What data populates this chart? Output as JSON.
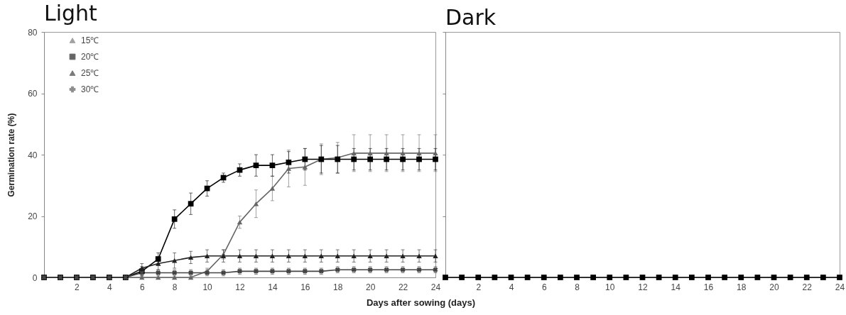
{
  "chart_data": [
    {
      "type": "line",
      "title": "Light",
      "xlabel": "Days after sowing (days)",
      "ylabel": "Germination rate (%)",
      "x": [
        0,
        1,
        2,
        3,
        4,
        5,
        6,
        7,
        8,
        9,
        10,
        11,
        12,
        13,
        14,
        15,
        16,
        17,
        18,
        19,
        20,
        21,
        22,
        23,
        24
      ],
      "series": [
        {
          "name": "15℃",
          "color": "#666666",
          "marker": "triangle",
          "values": [
            0,
            0,
            0,
            0,
            0,
            0,
            0,
            0,
            0,
            0,
            2,
            7.5,
            18,
            24,
            29,
            35.5,
            36,
            38.5,
            39,
            40.5,
            40.5,
            40.5,
            40.5,
            40.5,
            40.5
          ],
          "errors": [
            null,
            null,
            null,
            null,
            null,
            null,
            null,
            null,
            null,
            null,
            1,
            1.5,
            2,
            4.5,
            4,
            6,
            6,
            5,
            5,
            6,
            6,
            6,
            6,
            6,
            6
          ]
        },
        {
          "name": "20℃",
          "color": "#000000",
          "marker": "square",
          "values": [
            0,
            0,
            0,
            0,
            0,
            0,
            2,
            6,
            19,
            24,
            29,
            32.5,
            35,
            36.5,
            36.5,
            37.5,
            38.5,
            38.5,
            38.5,
            38.5,
            38.5,
            38.5,
            38.5,
            38.5,
            38.5
          ],
          "errors": [
            null,
            null,
            null,
            null,
            null,
            null,
            1.5,
            2,
            3,
            3.5,
            2.5,
            1.5,
            2,
            3.5,
            3.5,
            3.5,
            3.5,
            4.5,
            4.5,
            3.5,
            3.5,
            3.5,
            3.5,
            3.5,
            3.5
          ]
        },
        {
          "name": "25℃",
          "color": "#222222",
          "marker": "triangle",
          "values": [
            0,
            0,
            0,
            0,
            0,
            0,
            3,
            4.5,
            5.5,
            6.5,
            7,
            7,
            7,
            7,
            7,
            7,
            7,
            7,
            7,
            7,
            7,
            7,
            7,
            7,
            7
          ],
          "errors": [
            null,
            null,
            null,
            null,
            null,
            null,
            1.5,
            2,
            2.5,
            2,
            2,
            2,
            2,
            2,
            2,
            2,
            2,
            2,
            2,
            2,
            2,
            2,
            2,
            2,
            2
          ]
        },
        {
          "name": "30℃",
          "color": "#444444",
          "marker": "cross",
          "values": [
            0,
            0,
            0,
            0,
            0,
            0,
            1.5,
            1.5,
            1.5,
            1.5,
            1.5,
            1.5,
            2,
            2,
            2,
            2,
            2,
            2,
            2.5,
            2.5,
            2.5,
            2.5,
            2.5,
            2.5,
            2.5
          ],
          "errors": [
            null,
            null,
            null,
            null,
            null,
            null,
            1,
            1,
            1,
            1,
            1,
            1,
            1,
            1,
            1,
            1,
            1,
            1,
            1,
            1,
            1,
            1,
            1,
            1,
            1
          ]
        }
      ],
      "xlim": [
        0,
        24
      ],
      "ylim": [
        0,
        80
      ],
      "xticks": [
        2,
        4,
        6,
        8,
        10,
        12,
        14,
        16,
        18,
        20,
        22,
        24
      ],
      "yticks": [
        0,
        20,
        40,
        60,
        80
      ],
      "legend": "top left"
    },
    {
      "type": "line",
      "title": "Dark",
      "x": [
        0,
        1,
        2,
        3,
        4,
        5,
        6,
        7,
        8,
        9,
        10,
        11,
        12,
        13,
        14,
        15,
        16,
        17,
        18,
        19,
        20,
        21,
        22,
        23,
        24
      ],
      "series": [
        {
          "color": "#000000",
          "marker": "square",
          "values": [
            0,
            0,
            0,
            0,
            0,
            0,
            0,
            0,
            0,
            0,
            0,
            0,
            0,
            0,
            0,
            0,
            0,
            0,
            0,
            0,
            0,
            0,
            0,
            0,
            0
          ]
        }
      ],
      "xlim": [
        0,
        24
      ],
      "ylim": [
        0,
        80
      ],
      "xticks": [
        2,
        4,
        6,
        8,
        10,
        12,
        14,
        16,
        18,
        20,
        22,
        24
      ],
      "yticks": [
        0,
        20,
        40,
        60,
        80
      ],
      "tick_labels": "x"
    }
  ]
}
